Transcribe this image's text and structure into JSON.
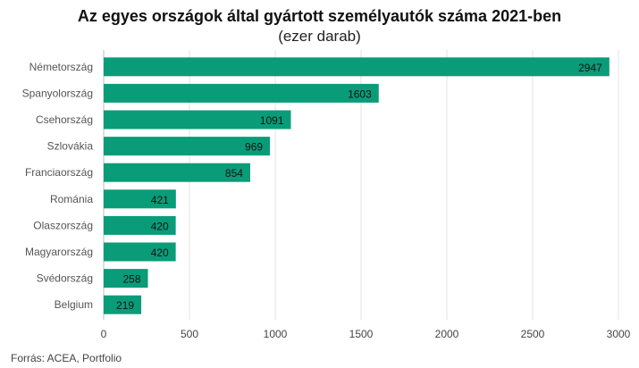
{
  "chart_data": {
    "type": "bar",
    "orientation": "horizontal",
    "title": "Az egyes országok által gyártott személyautók száma 2021-ben",
    "subtitle": "(ezer darab)",
    "categories": [
      "Németország",
      "Spanyolország",
      "Csehország",
      "Szlovákia",
      "Franciaország",
      "Románia",
      "Olaszország",
      "Magyarország",
      "Svédország",
      "Belgium"
    ],
    "values": [
      2947,
      1603,
      1091,
      969,
      854,
      421,
      420,
      420,
      258,
      219
    ],
    "xlim": [
      0,
      3000
    ],
    "xticks": [
      0,
      500,
      1000,
      1500,
      2000,
      2500,
      3000
    ],
    "grid": true,
    "data_labels": true,
    "bar_color": "#0a9c78"
  },
  "source": "Forrás:  ACEA,  Portfolio"
}
